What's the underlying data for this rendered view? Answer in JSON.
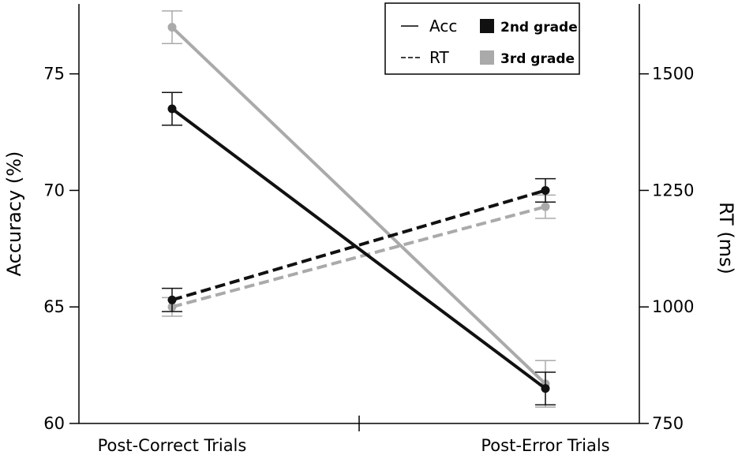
{
  "chart_data": {
    "type": "line",
    "categories": [
      "Post-Correct Trials",
      "Post-Error Trials"
    ],
    "ylabel_left": "Accuracy (%)",
    "ylabel_right": "RT (ms)",
    "ylim_left": [
      60,
      78
    ],
    "ylim_right": [
      750,
      1650
    ],
    "yticks_left": [
      "60",
      "65",
      "70",
      "75"
    ],
    "yticks_right": [
      "750",
      "1000",
      "1250",
      "1500"
    ],
    "legend": {
      "placement": "top-right",
      "line_styles": [
        {
          "label": "Acc",
          "style": "solid"
        },
        {
          "label": "RT",
          "style": "dashed"
        }
      ],
      "groups": [
        {
          "label": "2nd grade",
          "color": "#111111"
        },
        {
          "label": "3rd grade",
          "color": "#aaaaaa"
        }
      ]
    },
    "series": [
      {
        "group": "2nd grade",
        "measure": "Acc",
        "axis": "left",
        "style": "solid",
        "color": "#111111",
        "values": [
          73.5,
          61.5
        ],
        "errors": [
          0.7,
          0.7
        ]
      },
      {
        "group": "3rd grade",
        "measure": "Acc",
        "axis": "left",
        "style": "solid",
        "color": "#aaaaaa",
        "values": [
          77.0,
          61.7
        ],
        "errors": [
          0.7,
          1.0
        ]
      },
      {
        "group": "2nd grade",
        "measure": "RT",
        "axis": "right",
        "style": "dashed",
        "color": "#111111",
        "values": [
          1015,
          1250
        ],
        "errors": [
          25,
          25
        ]
      },
      {
        "group": "3rd grade",
        "measure": "RT",
        "axis": "right",
        "style": "dashed",
        "color": "#aaaaaa",
        "values": [
          1000,
          1215
        ],
        "errors": [
          20,
          25
        ]
      }
    ]
  }
}
